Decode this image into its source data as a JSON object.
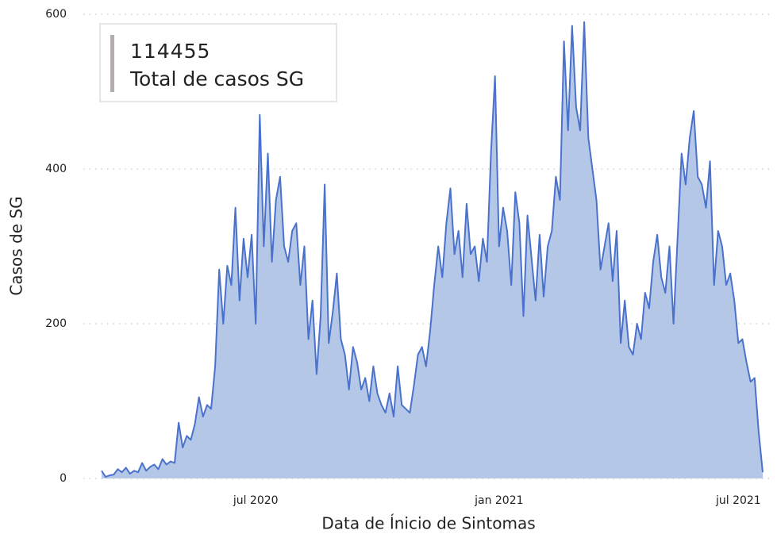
{
  "chart_data": {
    "type": "area",
    "y_label": "Casos de SG",
    "x_label": "Data de Ínicio de Sintomas",
    "kpi": {
      "value": 114455,
      "label": "Total de casos SG"
    },
    "color": "#4a72cc",
    "fill": "#b4c7e7",
    "grid": true,
    "categories": [
      null,
      null,
      null,
      null,
      null,
      null,
      null,
      null,
      null,
      null,
      null,
      null,
      null,
      null,
      null,
      null,
      null,
      null,
      null,
      null,
      null,
      null,
      null,
      null,
      null,
      null,
      null,
      null,
      null,
      null,
      null,
      null,
      null,
      null,
      null,
      null,
      null,
      null,
      null,
      null,
      null,
      null,
      null,
      null,
      null,
      null,
      null,
      null,
      null,
      null,
      null,
      null,
      null,
      null,
      null,
      null,
      null,
      null,
      null,
      null,
      null,
      null,
      null,
      null,
      null,
      null,
      null,
      null,
      null,
      null,
      null,
      null,
      null,
      null,
      null,
      null,
      null,
      null,
      null,
      null,
      null,
      null,
      null,
      null,
      null,
      null,
      null,
      null,
      null,
      null,
      null,
      null,
      null,
      null,
      null,
      null,
      null,
      null,
      null,
      null,
      null,
      null,
      null,
      null,
      null,
      null,
      null,
      null,
      null,
      null,
      null,
      null,
      null,
      null,
      null,
      null,
      null,
      null,
      null,
      null,
      null,
      null,
      null,
      null,
      null,
      null,
      null,
      null,
      null,
      null,
      null,
      null,
      null,
      null,
      null,
      null,
      null,
      null,
      null,
      null,
      null,
      null,
      null,
      null,
      null,
      null,
      null,
      null,
      null,
      null,
      null,
      null,
      null,
      null,
      null,
      null,
      null,
      null,
      null,
      null,
      null,
      null,
      null,
      null
    ],
    "values": [
      10,
      2,
      4,
      5,
      12,
      8,
      14,
      6,
      10,
      8,
      20,
      10,
      15,
      18,
      12,
      25,
      18,
      22,
      20,
      72,
      40,
      55,
      50,
      70,
      105,
      80,
      95,
      90,
      145,
      270,
      200,
      275,
      250,
      350,
      230,
      310,
      260,
      315,
      200,
      470,
      300,
      420,
      280,
      360,
      390,
      300,
      280,
      320,
      330,
      250,
      300,
      180,
      230,
      135,
      210,
      380,
      175,
      215,
      265,
      180,
      160,
      115,
      170,
      150,
      115,
      130,
      100,
      145,
      110,
      95,
      85,
      110,
      80,
      145,
      95,
      90,
      85,
      120,
      160,
      170,
      145,
      190,
      250,
      300,
      260,
      330,
      375,
      290,
      320,
      260,
      355,
      290,
      300,
      255,
      310,
      280,
      420,
      520,
      300,
      350,
      320,
      250,
      370,
      330,
      210,
      340,
      285,
      230,
      315,
      235,
      300,
      320,
      390,
      360,
      565,
      450,
      585,
      480,
      450,
      590,
      440,
      400,
      360,
      270,
      300,
      330,
      255,
      320,
      175,
      230,
      170,
      160,
      200,
      180,
      240,
      220,
      280,
      315,
      260,
      240,
      300,
      200,
      310,
      420,
      380,
      440,
      475,
      390,
      380,
      350,
      410,
      250,
      320,
      300,
      250,
      265,
      230,
      175,
      180,
      150,
      125,
      130,
      60,
      8
    ],
    "xticks": [
      {
        "value": 38,
        "label": "jul 2020"
      },
      {
        "value": 98,
        "label": "jan 2021"
      },
      {
        "value": 157,
        "label": "jul 2021"
      }
    ],
    "ylim": [
      0,
      600
    ],
    "yticks": [
      0,
      200,
      400,
      600
    ]
  }
}
